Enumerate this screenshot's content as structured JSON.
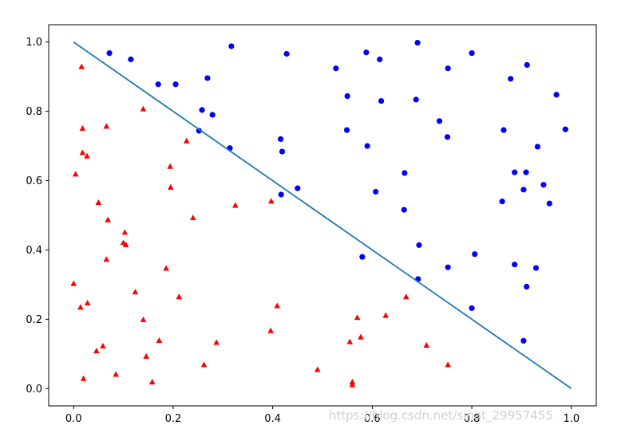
{
  "watermark": "https://blog.csdn.net/sinat_29957455",
  "chart_data": {
    "type": "scatter",
    "title": "",
    "xlabel": "",
    "ylabel": "",
    "xlim": [
      -0.05,
      1.05
    ],
    "ylim": [
      -0.05,
      1.05
    ],
    "grid": false,
    "xticks": [
      "0.0",
      "0.2",
      "0.4",
      "0.6",
      "0.8",
      "1.0"
    ],
    "yticks": [
      "0.0",
      "0.2",
      "0.4",
      "0.6",
      "0.8",
      "1.0"
    ],
    "series": [
      {
        "marker": "circle",
        "color": "#0000ff",
        "points": [
          [
            0.072,
            0.968
          ],
          [
            0.115,
            0.95
          ],
          [
            0.17,
            0.878
          ],
          [
            0.205,
            0.878
          ],
          [
            0.269,
            0.896
          ],
          [
            0.317,
            0.988
          ],
          [
            0.428,
            0.966
          ],
          [
            0.258,
            0.804
          ],
          [
            0.279,
            0.79
          ],
          [
            0.252,
            0.744
          ],
          [
            0.314,
            0.694
          ],
          [
            0.416,
            0.72
          ],
          [
            0.419,
            0.684
          ],
          [
            0.417,
            0.56
          ],
          [
            0.45,
            0.578
          ],
          [
            0.527,
            0.924
          ],
          [
            0.588,
            0.97
          ],
          [
            0.615,
            0.95
          ],
          [
            0.691,
            0.998
          ],
          [
            0.8,
            0.968
          ],
          [
            0.752,
            0.924
          ],
          [
            0.55,
            0.844
          ],
          [
            0.618,
            0.83
          ],
          [
            0.688,
            0.834
          ],
          [
            0.911,
            0.934
          ],
          [
            0.878,
            0.894
          ],
          [
            0.97,
            0.848
          ],
          [
            0.549,
            0.746
          ],
          [
            0.59,
            0.7
          ],
          [
            0.735,
            0.772
          ],
          [
            0.751,
            0.726
          ],
          [
            0.864,
            0.746
          ],
          [
            0.988,
            0.748
          ],
          [
            0.932,
            0.698
          ],
          [
            0.665,
            0.622
          ],
          [
            0.607,
            0.568
          ],
          [
            0.664,
            0.516
          ],
          [
            0.886,
            0.624
          ],
          [
            0.909,
            0.624
          ],
          [
            0.904,
            0.574
          ],
          [
            0.944,
            0.588
          ],
          [
            0.861,
            0.54
          ],
          [
            0.956,
            0.534
          ],
          [
            0.694,
            0.414
          ],
          [
            0.58,
            0.38
          ],
          [
            0.806,
            0.388
          ],
          [
            0.752,
            0.35
          ],
          [
            0.886,
            0.358
          ],
          [
            0.929,
            0.348
          ],
          [
            0.692,
            0.316
          ],
          [
            0.91,
            0.294
          ],
          [
            0.8,
            0.232
          ],
          [
            0.904,
            0.138
          ]
        ]
      },
      {
        "marker": "triangle",
        "color": "#ff0000",
        "points": [
          [
            0.016,
            0.928
          ],
          [
            0.14,
            0.806
          ],
          [
            0.018,
            0.75
          ],
          [
            0.066,
            0.756
          ],
          [
            0.227,
            0.714
          ],
          [
            0.018,
            0.68
          ],
          [
            0.027,
            0.67
          ],
          [
            0.004,
            0.618
          ],
          [
            0.194,
            0.64
          ],
          [
            0.195,
            0.58
          ],
          [
            0.05,
            0.536
          ],
          [
            0.397,
            0.54
          ],
          [
            0.325,
            0.528
          ],
          [
            0.24,
            0.492
          ],
          [
            0.069,
            0.486
          ],
          [
            0.103,
            0.45
          ],
          [
            0.1,
            0.42
          ],
          [
            0.105,
            0.414
          ],
          [
            0.066,
            0.372
          ],
          [
            0.186,
            0.346
          ],
          [
            0.0,
            0.302
          ],
          [
            0.124,
            0.278
          ],
          [
            0.212,
            0.264
          ],
          [
            0.668,
            0.264
          ],
          [
            0.014,
            0.234
          ],
          [
            0.028,
            0.246
          ],
          [
            0.409,
            0.238
          ],
          [
            0.14,
            0.198
          ],
          [
            0.57,
            0.204
          ],
          [
            0.627,
            0.21
          ],
          [
            0.396,
            0.166
          ],
          [
            0.577,
            0.148
          ],
          [
            0.172,
            0.138
          ],
          [
            0.555,
            0.134
          ],
          [
            0.287,
            0.132
          ],
          [
            0.059,
            0.122
          ],
          [
            0.709,
            0.124
          ],
          [
            0.046,
            0.108
          ],
          [
            0.146,
            0.092
          ],
          [
            0.262,
            0.068
          ],
          [
            0.752,
            0.068
          ],
          [
            0.49,
            0.054
          ],
          [
            0.085,
            0.04
          ],
          [
            0.02,
            0.028
          ],
          [
            0.158,
            0.018
          ],
          [
            0.56,
            0.018
          ],
          [
            0.56,
            0.01
          ]
        ]
      },
      {
        "marker": "line",
        "color": "#1f77b4",
        "points": [
          [
            0.0,
            1.0
          ],
          [
            1.0,
            0.0
          ]
        ]
      }
    ]
  }
}
